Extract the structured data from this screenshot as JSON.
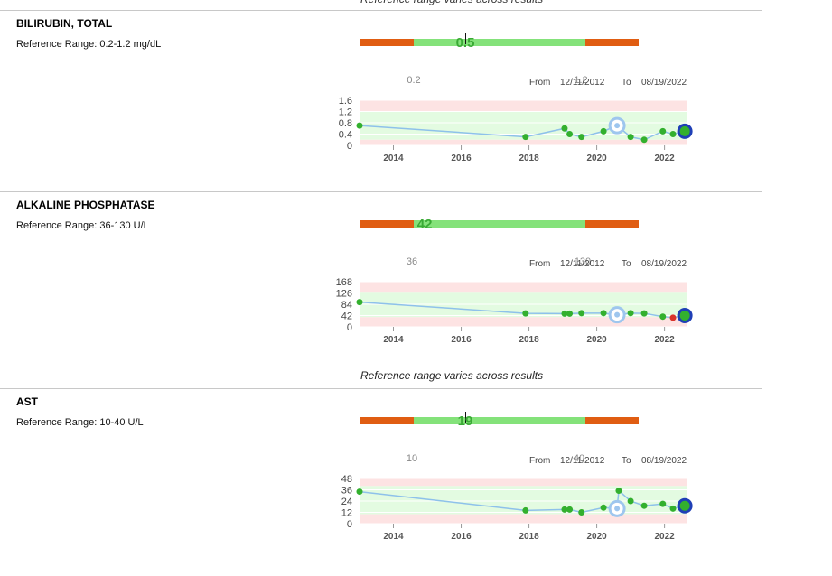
{
  "page": {
    "top_note": "Reference range varies across results"
  },
  "tests": [
    {
      "name": "BILIRUBIN, TOTAL",
      "reference_range": "Reference Range: 0.2-1.2 mg/dL",
      "latest_value": "0.5",
      "low_limit": "0.2",
      "high_limit": "1.2",
      "from_label": "From",
      "from_date": "12/11/2012",
      "to_label": "To",
      "to_date": "08/19/2022",
      "ref_low": 0.2,
      "ref_high": 1.2,
      "bar_min": 0.0,
      "bar_max": 1.6,
      "chart_data": {
        "type": "line",
        "y_ticks": [
          "1.6",
          "1.2",
          "0.8",
          "0.4",
          "0"
        ],
        "ylim": [
          0,
          1.6
        ],
        "x_ticks": [
          "2014",
          "2016",
          "2018",
          "2020",
          "2022"
        ],
        "xlim": [
          2013.0,
          2022.65
        ],
        "points": [
          {
            "x": 2013.0,
            "y": 0.7
          },
          {
            "x": 2017.9,
            "y": 0.3
          },
          {
            "x": 2019.05,
            "y": 0.6
          },
          {
            "x": 2019.2,
            "y": 0.4
          },
          {
            "x": 2019.55,
            "y": 0.3
          },
          {
            "x": 2020.2,
            "y": 0.5
          },
          {
            "x": 2020.6,
            "y": 0.7,
            "marker": "selected"
          },
          {
            "x": 2021.0,
            "y": 0.3
          },
          {
            "x": 2021.4,
            "y": 0.2
          },
          {
            "x": 2021.95,
            "y": 0.5
          },
          {
            "x": 2022.25,
            "y": 0.4
          },
          {
            "x": 2022.6,
            "y": 0.5,
            "marker": "latest"
          }
        ]
      }
    },
    {
      "name": "ALKALINE PHOSPHATASE",
      "reference_range": "Reference Range: 36-130 U/L",
      "latest_value": "42",
      "low_limit": "36",
      "high_limit": "130",
      "from_label": "From",
      "from_date": "12/11/2012",
      "to_label": "To",
      "to_date": "08/19/2022",
      "ref_low": 36,
      "ref_high": 130,
      "bar_min": 0,
      "bar_max": 168,
      "chart_data": {
        "type": "line",
        "y_ticks": [
          "168",
          "126",
          "84",
          "42",
          "0"
        ],
        "ylim": [
          0,
          168
        ],
        "x_ticks": [
          "2014",
          "2016",
          "2018",
          "2020",
          "2022"
        ],
        "xlim": [
          2013.0,
          2022.65
        ],
        "points": [
          {
            "x": 2013.0,
            "y": 92
          },
          {
            "x": 2017.9,
            "y": 50
          },
          {
            "x": 2019.05,
            "y": 49
          },
          {
            "x": 2019.2,
            "y": 49
          },
          {
            "x": 2019.55,
            "y": 51
          },
          {
            "x": 2020.2,
            "y": 51
          },
          {
            "x": 2020.6,
            "y": 45,
            "marker": "selected"
          },
          {
            "x": 2021.0,
            "y": 51
          },
          {
            "x": 2021.4,
            "y": 50
          },
          {
            "x": 2021.95,
            "y": 38
          },
          {
            "x": 2022.25,
            "y": 34,
            "marker": "low"
          },
          {
            "x": 2022.6,
            "y": 42,
            "marker": "latest"
          }
        ]
      }
    },
    {
      "name": "AST",
      "reference_range": "Reference Range: 10-40 U/L",
      "latest_value": "19",
      "low_limit": "10",
      "high_limit": "40",
      "from_label": "From",
      "from_date": "12/11/2012",
      "to_label": "To",
      "to_date": "08/19/2022",
      "ref_low": 10,
      "ref_high": 40,
      "bar_min": 0,
      "bar_max": 48,
      "chart_data": {
        "type": "line",
        "y_ticks": [
          "48",
          "36",
          "24",
          "12",
          "0"
        ],
        "ylim": [
          0,
          48
        ],
        "x_ticks": [
          "2014",
          "2016",
          "2018",
          "2020",
          "2022"
        ],
        "xlim": [
          2013.0,
          2022.65
        ],
        "points": [
          {
            "x": 2013.0,
            "y": 34
          },
          {
            "x": 2017.9,
            "y": 14
          },
          {
            "x": 2019.05,
            "y": 15
          },
          {
            "x": 2019.2,
            "y": 15
          },
          {
            "x": 2019.55,
            "y": 12
          },
          {
            "x": 2020.2,
            "y": 17
          },
          {
            "x": 2020.6,
            "y": 16,
            "marker": "selected"
          },
          {
            "x": 2020.65,
            "y": 35
          },
          {
            "x": 2021.0,
            "y": 24
          },
          {
            "x": 2021.4,
            "y": 19
          },
          {
            "x": 2021.95,
            "y": 21
          },
          {
            "x": 2022.25,
            "y": 16
          },
          {
            "x": 2022.6,
            "y": 19,
            "marker": "latest"
          }
        ]
      }
    }
  ],
  "colors": {
    "bar_out": "#e05d12",
    "bar_in": "#84e27a",
    "value_green": "#3aaa35",
    "line": "#8ec1ea",
    "point": "#33b02e",
    "point_low": "#d9342b",
    "latest_ring": "#1f3fb6",
    "selected_ring": "#9ec6ee",
    "band_out": "#fde3e3",
    "band_in": "#e3fbe1"
  }
}
